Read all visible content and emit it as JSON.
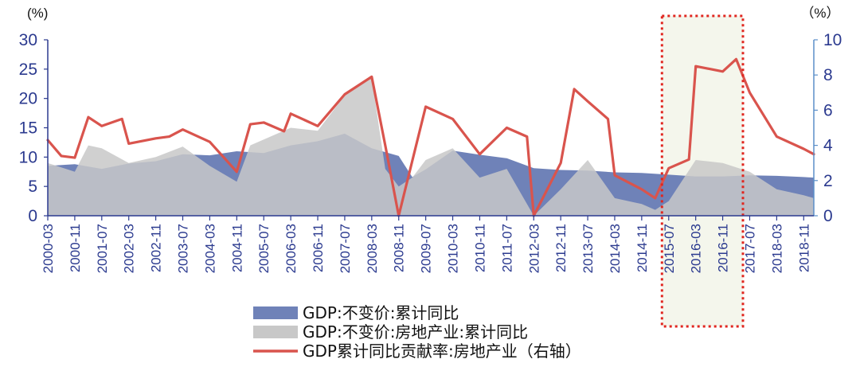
{
  "chart_data": {
    "type": "area",
    "left_unit": "(%)",
    "right_unit": "（%）",
    "left_ylim": [
      0,
      30
    ],
    "left_ticks": [
      "0",
      "5",
      "10",
      "15",
      "20",
      "25",
      "30"
    ],
    "right_ylim": [
      0,
      10
    ],
    "right_ticks": [
      "0",
      "2",
      "4",
      "6",
      "8",
      "10"
    ],
    "x_tick_labels": [
      "2000-03",
      "2000-11",
      "2001-07",
      "2002-03",
      "2002-11",
      "2003-07",
      "2004-03",
      "2004-11",
      "2005-07",
      "2006-03",
      "2006-11",
      "2007-07",
      "2008-03",
      "2008-11",
      "2009-07",
      "2010-03",
      "2010-11",
      "2011-07",
      "2012-03",
      "2012-11",
      "2013-07",
      "2014-03",
      "2014-11",
      "2015-07",
      "2016-03",
      "2016-11",
      "2017-07",
      "2018-03",
      "2018-11"
    ],
    "x_start": "2000-03",
    "x_end": "2019-02",
    "series": [
      {
        "name": "GDP:不变价:累计同比",
        "axis": "left",
        "color": "#6f82b8",
        "points": [
          [
            "2000-03",
            8.5
          ],
          [
            "2000-11",
            8.8
          ],
          [
            "2001-07",
            8.0
          ],
          [
            "2002-03",
            8.9
          ],
          [
            "2002-11",
            9.3
          ],
          [
            "2003-07",
            10.5
          ],
          [
            "2004-03",
            10.3
          ],
          [
            "2004-11",
            11.0
          ],
          [
            "2005-07",
            10.7
          ],
          [
            "2006-03",
            12.0
          ],
          [
            "2006-11",
            12.7
          ],
          [
            "2007-07",
            14.0
          ],
          [
            "2008-03",
            11.5
          ],
          [
            "2008-11",
            10.2
          ],
          [
            "2009-03",
            6.6
          ],
          [
            "2009-07",
            7.9
          ],
          [
            "2010-03",
            11.1
          ],
          [
            "2010-11",
            10.4
          ],
          [
            "2011-07",
            9.8
          ],
          [
            "2012-03",
            8.1
          ],
          [
            "2012-11",
            7.8
          ],
          [
            "2013-07",
            7.7
          ],
          [
            "2014-03",
            7.4
          ],
          [
            "2014-11",
            7.3
          ],
          [
            "2015-07",
            7.0
          ],
          [
            "2016-03",
            6.7
          ],
          [
            "2016-11",
            6.7
          ],
          [
            "2017-07",
            6.9
          ],
          [
            "2018-03",
            6.8
          ],
          [
            "2018-11",
            6.6
          ],
          [
            "2019-02",
            6.5
          ]
        ]
      },
      {
        "name": "GDP:不变价:房地产业:累计同比",
        "axis": "left",
        "color": "#c8c8c8",
        "points": [
          [
            "2000-03",
            9.0
          ],
          [
            "2000-11",
            7.5
          ],
          [
            "2001-03",
            12.0
          ],
          [
            "2001-07",
            11.5
          ],
          [
            "2002-03",
            9.0
          ],
          [
            "2002-11",
            10.0
          ],
          [
            "2003-07",
            11.8
          ],
          [
            "2004-03",
            8.5
          ],
          [
            "2004-11",
            5.8
          ],
          [
            "2005-03",
            12.0
          ],
          [
            "2005-07",
            13.0
          ],
          [
            "2006-03",
            15.0
          ],
          [
            "2006-11",
            14.5
          ],
          [
            "2007-07",
            20.5
          ],
          [
            "2008-03",
            23.5
          ],
          [
            "2008-07",
            8.0
          ],
          [
            "2008-11",
            5.0
          ],
          [
            "2009-03",
            6.5
          ],
          [
            "2009-07",
            9.5
          ],
          [
            "2010-03",
            11.5
          ],
          [
            "2010-11",
            6.5
          ],
          [
            "2011-07",
            8.0
          ],
          [
            "2012-03",
            0
          ],
          [
            "2012-11",
            4.5
          ],
          [
            "2013-07",
            9.5
          ],
          [
            "2014-03",
            3.0
          ],
          [
            "2014-11",
            2.0
          ],
          [
            "2015-03",
            1.0
          ],
          [
            "2015-07",
            2.5
          ],
          [
            "2016-03",
            9.5
          ],
          [
            "2016-11",
            9.0
          ],
          [
            "2017-07",
            7.5
          ],
          [
            "2018-03",
            4.5
          ],
          [
            "2018-11",
            3.5
          ],
          [
            "2019-02",
            3.0
          ]
        ]
      },
      {
        "name": "GDP累计同比贡献率:房地产业（右轴）",
        "axis": "right",
        "color": "#d9544d",
        "points": [
          [
            "2000-03",
            4.3
          ],
          [
            "2000-07",
            3.4
          ],
          [
            "2000-11",
            3.3
          ],
          [
            "2001-03",
            5.6
          ],
          [
            "2001-07",
            5.1
          ],
          [
            "2002-01",
            5.5
          ],
          [
            "2002-03",
            4.1
          ],
          [
            "2002-11",
            4.4
          ],
          [
            "2003-03",
            4.5
          ],
          [
            "2003-07",
            4.9
          ],
          [
            "2004-03",
            4.2
          ],
          [
            "2004-11",
            2.5
          ],
          [
            "2005-03",
            5.2
          ],
          [
            "2005-07",
            5.3
          ],
          [
            "2006-01",
            4.8
          ],
          [
            "2006-03",
            5.8
          ],
          [
            "2006-11",
            5.1
          ],
          [
            "2007-07",
            6.9
          ],
          [
            "2008-03",
            7.9
          ],
          [
            "2008-07",
            4.0
          ],
          [
            "2008-11",
            0
          ],
          [
            "2009-07",
            6.2
          ],
          [
            "2010-03",
            5.5
          ],
          [
            "2010-11",
            3.5
          ],
          [
            "2011-07",
            5.0
          ],
          [
            "2012-01",
            4.5
          ],
          [
            "2012-03",
            0
          ],
          [
            "2012-11",
            3.0
          ],
          [
            "2013-03",
            7.2
          ],
          [
            "2013-07",
            6.5
          ],
          [
            "2014-01",
            5.5
          ],
          [
            "2014-03",
            2.3
          ],
          [
            "2014-11",
            1.5
          ],
          [
            "2015-03",
            1.0
          ],
          [
            "2015-07",
            2.7
          ],
          [
            "2016-01",
            3.2
          ],
          [
            "2016-03",
            8.5
          ],
          [
            "2016-11",
            8.2
          ],
          [
            "2017-03",
            8.9
          ],
          [
            "2017-07",
            7.0
          ],
          [
            "2018-03",
            4.5
          ],
          [
            "2018-11",
            3.8
          ],
          [
            "2019-02",
            3.5
          ]
        ]
      }
    ],
    "highlight": {
      "from": "2015-05",
      "to": "2017-05"
    },
    "legend_placement": "bottom",
    "grid": false
  }
}
